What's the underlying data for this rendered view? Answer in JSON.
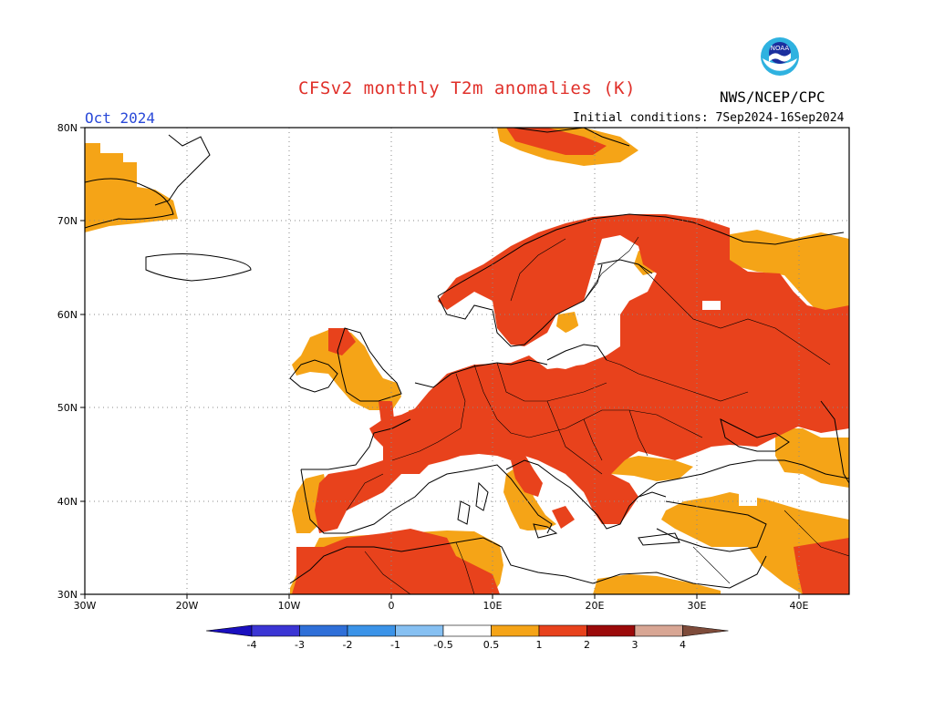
{
  "header": {
    "title": "CFSv2 monthly T2m anomalies (K)",
    "month": "Oct 2024",
    "initial_conditions": "Initial conditions: 7Sep2024-16Sep2024",
    "agency": "NWS/NCEP/CPC",
    "logo_text": "NOAA"
  },
  "map": {
    "projection": "lat-lon",
    "lon_range": [
      -30,
      45
    ],
    "lat_range": [
      30,
      80
    ],
    "lon_labels": [
      "30W",
      "20W",
      "10W",
      "0",
      "10E",
      "20E",
      "30E",
      "40E"
    ],
    "lat_labels": [
      "80N",
      "70N",
      "60N",
      "50N",
      "40N",
      "30N"
    ]
  },
  "colorbar": {
    "labels": [
      "-4",
      "-3",
      "-2",
      "-1",
      "-0.5",
      "0.5",
      "1",
      "2",
      "3",
      "4"
    ],
    "colors": [
      "#1a0fbf",
      "#3b35d4",
      "#2f6fd8",
      "#3b93e8",
      "#86c0f2",
      "#ffffff",
      "#f5a417",
      "#e8421c",
      "#9b0a0a",
      "#d8a694",
      "#7e4b3a"
    ],
    "units": "K"
  },
  "colors": {
    "anomaly_0_5_to_1": "#f5a417",
    "anomaly_1_to_2": "#e8421c",
    "background": "#ffffff",
    "coast": "#000000"
  }
}
